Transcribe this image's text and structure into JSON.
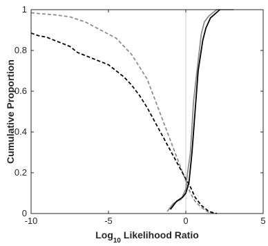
{
  "chart_data": {
    "type": "line",
    "title": "",
    "xlabel_base": "Log",
    "xlabel_sub": "10",
    "xlabel_rest": " Likelihood Ratio",
    "ylabel": "Cumulative Proportion",
    "xlim": [
      -10,
      5
    ],
    "ylim": [
      0,
      1
    ],
    "xticks": [
      -10,
      -5,
      0,
      5
    ],
    "yticks": [
      0,
      0.2,
      0.4,
      0.6,
      0.8,
      1
    ],
    "ytick_labels": [
      "0",
      "0.2",
      "0.4",
      "0.6",
      "0.8",
      "1"
    ],
    "xtick_labels": [
      "-10",
      "-5",
      "0",
      "5"
    ],
    "grid": false,
    "reference_line": {
      "x": 0,
      "color": "#c8c8c8"
    },
    "series": [
      {
        "style": "dashed",
        "color": "#8c8c8c",
        "points": [
          [
            -10,
            0.985
          ],
          [
            -9.5,
            0.981
          ],
          [
            -8.5,
            0.975
          ],
          [
            -7.5,
            0.965
          ],
          [
            -6.5,
            0.94
          ],
          [
            -5.5,
            0.9
          ],
          [
            -4.5,
            0.86
          ],
          [
            -3.5,
            0.78
          ],
          [
            -2.5,
            0.66
          ],
          [
            -2,
            0.56
          ],
          [
            -1.5,
            0.46
          ],
          [
            -1,
            0.36
          ],
          [
            -0.5,
            0.26
          ],
          [
            0,
            0.16
          ],
          [
            0.3,
            0.1
          ],
          [
            0.6,
            0.06
          ],
          [
            1,
            0.03
          ],
          [
            1.5,
            0.005
          ],
          [
            2,
            0
          ]
        ]
      },
      {
        "style": "dashed",
        "color": "#000000",
        "points": [
          [
            -10,
            0.885
          ],
          [
            -9.5,
            0.872
          ],
          [
            -9,
            0.865
          ],
          [
            -8.5,
            0.85
          ],
          [
            -7.5,
            0.82
          ],
          [
            -7,
            0.79
          ],
          [
            -6,
            0.76
          ],
          [
            -5,
            0.73
          ],
          [
            -4,
            0.67
          ],
          [
            -3.5,
            0.63
          ],
          [
            -3,
            0.58
          ],
          [
            -2.5,
            0.52
          ],
          [
            -2,
            0.45
          ],
          [
            -1.5,
            0.38
          ],
          [
            -1,
            0.31
          ],
          [
            -0.5,
            0.24
          ],
          [
            0,
            0.17
          ],
          [
            0.3,
            0.13
          ],
          [
            0.6,
            0.08
          ],
          [
            1,
            0.04
          ],
          [
            1.5,
            0.01
          ],
          [
            2,
            0
          ]
        ]
      },
      {
        "style": "solid",
        "color": "#8c8c8c",
        "points": [
          [
            -1.2,
            0.01
          ],
          [
            -0.8,
            0.05
          ],
          [
            -0.3,
            0.07
          ],
          [
            0,
            0.12
          ],
          [
            0.1,
            0.19
          ],
          [
            0.3,
            0.3
          ],
          [
            0.5,
            0.55
          ],
          [
            0.8,
            0.75
          ],
          [
            1,
            0.88
          ],
          [
            1.2,
            0.94
          ],
          [
            1.5,
            0.97
          ],
          [
            2,
            1
          ],
          [
            3.1,
            1
          ]
        ]
      },
      {
        "style": "solid",
        "color": "#000000",
        "points": [
          [
            -1,
            0.02
          ],
          [
            -0.6,
            0.06
          ],
          [
            -0.2,
            0.08
          ],
          [
            0,
            0.1
          ],
          [
            0.2,
            0.15
          ],
          [
            0.4,
            0.3
          ],
          [
            0.6,
            0.5
          ],
          [
            0.8,
            0.7
          ],
          [
            1.1,
            0.85
          ],
          [
            1.3,
            0.91
          ],
          [
            1.6,
            0.96
          ],
          [
            2.2,
            1
          ]
        ]
      }
    ]
  }
}
